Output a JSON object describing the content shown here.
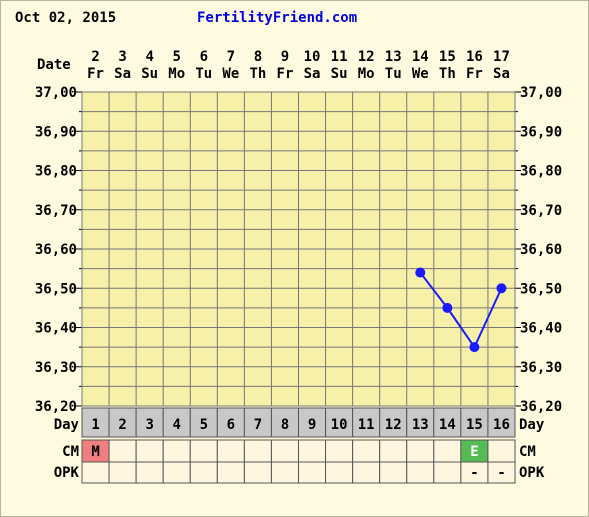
{
  "header": {
    "date": "Oct 02, 2015",
    "site": "FertilityFriend.com"
  },
  "colors": {
    "grid_bg": "#f6f0a8",
    "line": "#1a1aff",
    "menstruation": "#f08080",
    "egg_white": "#55bb55",
    "day_row_bg": "#c8c8c8",
    "row_bg": "#fff6e0"
  },
  "chart_data": {
    "type": "line",
    "title": "",
    "xlabel": "Date",
    "ylabel": "",
    "ylim": [
      36.2,
      37.0
    ],
    "y_ticks": [
      "37,00",
      "36,90",
      "36,80",
      "36,70",
      "36,60",
      "36,50",
      "36,40",
      "36,30",
      "36,20"
    ],
    "dates": [
      "2",
      "3",
      "4",
      "5",
      "6",
      "7",
      "8",
      "9",
      "10",
      "11",
      "12",
      "13",
      "14",
      "15",
      "16",
      "17"
    ],
    "weekdays": [
      "Fr",
      "Sa",
      "Su",
      "Mo",
      "Tu",
      "We",
      "Th",
      "Fr",
      "Sa",
      "Su",
      "Mo",
      "Tu",
      "We",
      "Th",
      "Fr",
      "Sa"
    ],
    "cycle_days": [
      "1",
      "2",
      "3",
      "4",
      "5",
      "6",
      "7",
      "8",
      "9",
      "10",
      "11",
      "12",
      "13",
      "14",
      "15",
      "16"
    ],
    "series": [
      {
        "points": [
          {
            "cycle_day": 13,
            "temp": 36.54
          },
          {
            "cycle_day": 14,
            "temp": 36.45
          },
          {
            "cycle_day": 15,
            "temp": 36.35
          },
          {
            "cycle_day": 16,
            "temp": 36.5
          }
        ]
      }
    ],
    "rows": {
      "day_label": "Day",
      "cm_label": "CM",
      "opk_label": "OPK",
      "cm": [
        "M",
        "",
        "",
        "",
        "",
        "",
        "",
        "",
        "",
        "",
        "",
        "",
        "",
        "",
        "E",
        ""
      ],
      "opk": [
        "",
        "",
        "",
        "",
        "",
        "",
        "",
        "",
        "",
        "",
        "",
        "",
        "",
        "",
        "-",
        "-"
      ]
    },
    "grid": true
  }
}
